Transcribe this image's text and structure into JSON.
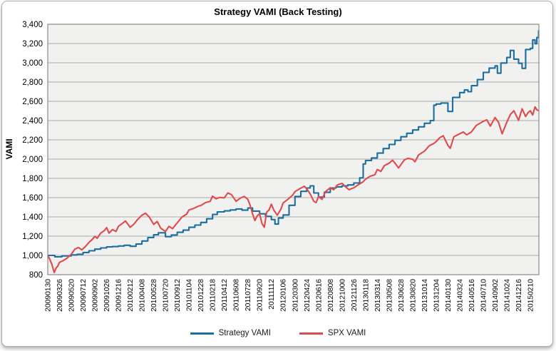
{
  "chart": {
    "title": "Strategy VAMI (Back Testing)",
    "y_axis_title": "VAMI"
  },
  "chart_data": {
    "type": "line",
    "title": "Strategy VAMI (Back Testing)",
    "xlabel": "",
    "ylabel": "VAMI",
    "ylim": [
      800,
      3400
    ],
    "ytick_step": 200,
    "grid": "horizontal",
    "legend_position": "bottom",
    "plot_bg": "#f1f1ef",
    "grid_color": "#ababab",
    "axis_color": "#8a8a8a",
    "y_tick_labels": [
      "800",
      "1,000",
      "1,200",
      "1,400",
      "1,600",
      "1,800",
      "2,000",
      "2,200",
      "2,400",
      "2,600",
      "2,800",
      "3,000",
      "3,200",
      "3,400"
    ],
    "x_labels": [
      "20090130",
      "20090326",
      "20090520",
      "20090712",
      "20090902",
      "20091026",
      "20091216",
      "20100212",
      "20100408",
      "20100528",
      "20100720",
      "20100912",
      "20101104",
      "20101228",
      "20110218",
      "20110412",
      "20110608",
      "20110728",
      "20110920",
      "20111112",
      "20120106",
      "20120300",
      "20120424",
      "20120616",
      "20120808",
      "20121000",
      "20121126",
      "20130118",
      "20130314",
      "20130508",
      "20130628",
      "20130820",
      "20131014",
      "20131204",
      "20140130",
      "20140324",
      "20140516",
      "20140710",
      "20140902",
      "20141024",
      "20141216",
      "20150210"
    ],
    "series": [
      {
        "name": "Strategy VAMI",
        "color": "#1b6e9d",
        "interpolation": "step",
        "points": [
          [
            0,
            1000
          ],
          [
            0.6,
            985
          ],
          [
            1.2,
            995
          ],
          [
            2,
            1005
          ],
          [
            2.5,
            1012
          ],
          [
            3,
            1030
          ],
          [
            3.5,
            1048
          ],
          [
            4,
            1065
          ],
          [
            4.5,
            1078
          ],
          [
            5,
            1088
          ],
          [
            5.5,
            1092
          ],
          [
            6,
            1098
          ],
          [
            6.5,
            1105
          ],
          [
            7,
            1095
          ],
          [
            7.5,
            1118
          ],
          [
            8,
            1150
          ],
          [
            8.5,
            1185
          ],
          [
            9,
            1215
          ],
          [
            9.4,
            1235
          ],
          [
            10,
            1195
          ],
          [
            10.5,
            1212
          ],
          [
            11,
            1240
          ],
          [
            11.5,
            1262
          ],
          [
            12,
            1292
          ],
          [
            12.5,
            1315
          ],
          [
            13,
            1342
          ],
          [
            13.5,
            1380
          ],
          [
            14,
            1425
          ],
          [
            14.4,
            1452
          ],
          [
            15,
            1462
          ],
          [
            15.5,
            1472
          ],
          [
            16,
            1482
          ],
          [
            16.5,
            1470
          ],
          [
            17,
            1492
          ],
          [
            17.4,
            1460
          ],
          [
            18,
            1432
          ],
          [
            18.5,
            1405
          ],
          [
            19,
            1372
          ],
          [
            19.3,
            1325
          ],
          [
            19.6,
            1388
          ],
          [
            20,
            1420
          ],
          [
            20.5,
            1520
          ],
          [
            21,
            1612
          ],
          [
            21.5,
            1665
          ],
          [
            22,
            1700
          ],
          [
            22.3,
            1722
          ],
          [
            22.6,
            1648
          ],
          [
            23,
            1605
          ],
          [
            23.5,
            1655
          ],
          [
            24,
            1700
          ],
          [
            24.5,
            1712
          ],
          [
            25,
            1722
          ],
          [
            25.5,
            1732
          ],
          [
            26,
            1752
          ],
          [
            26.5,
            1805
          ],
          [
            26.8,
            1950
          ],
          [
            27,
            1985
          ],
          [
            27.5,
            2012
          ],
          [
            28,
            2062
          ],
          [
            28.5,
            2110
          ],
          [
            29,
            2152
          ],
          [
            29.5,
            2195
          ],
          [
            30,
            2232
          ],
          [
            30.5,
            2268
          ],
          [
            31,
            2302
          ],
          [
            31.5,
            2335
          ],
          [
            32,
            2372
          ],
          [
            32.5,
            2400
          ],
          [
            32.8,
            2560
          ],
          [
            33,
            2572
          ],
          [
            33.4,
            2582
          ],
          [
            34,
            2495
          ],
          [
            34.4,
            2640
          ],
          [
            35,
            2690
          ],
          [
            35.4,
            2718
          ],
          [
            35.7,
            2700
          ],
          [
            36,
            2762
          ],
          [
            36.5,
            2825
          ],
          [
            37,
            2900
          ],
          [
            37.5,
            2945
          ],
          [
            38,
            2968
          ],
          [
            38.2,
            2892
          ],
          [
            38.5,
            2998
          ],
          [
            39,
            3055
          ],
          [
            39.3,
            3128
          ],
          [
            39.6,
            3038
          ],
          [
            40,
            2995
          ],
          [
            40.3,
            2942
          ],
          [
            40.6,
            3138
          ],
          [
            41,
            3150
          ],
          [
            41.2,
            3238
          ],
          [
            41.4,
            3198
          ],
          [
            41.55,
            3262
          ],
          [
            41.7,
            3338
          ]
        ]
      },
      {
        "name": "SPX VAMI",
        "color": "#e04a4a",
        "interpolation": "linear",
        "points": [
          [
            0,
            1000
          ],
          [
            0.2,
            952
          ],
          [
            0.35,
            905
          ],
          [
            0.55,
            822
          ],
          [
            0.7,
            868
          ],
          [
            0.85,
            888
          ],
          [
            1,
            928
          ],
          [
            1.3,
            945
          ],
          [
            1.6,
            968
          ],
          [
            2,
            1012
          ],
          [
            2.3,
            1065
          ],
          [
            2.6,
            1082
          ],
          [
            2.9,
            1058
          ],
          [
            3.2,
            1092
          ],
          [
            3.5,
            1135
          ],
          [
            3.8,
            1168
          ],
          [
            4,
            1198
          ],
          [
            4.2,
            1178
          ],
          [
            4.5,
            1232
          ],
          [
            4.8,
            1258
          ],
          [
            5,
            1288
          ],
          [
            5.2,
            1232
          ],
          [
            5.5,
            1268
          ],
          [
            5.8,
            1248
          ],
          [
            6,
            1302
          ],
          [
            6.3,
            1328
          ],
          [
            6.6,
            1358
          ],
          [
            7,
            1292
          ],
          [
            7.3,
            1322
          ],
          [
            7.6,
            1368
          ],
          [
            8,
            1418
          ],
          [
            8.3,
            1438
          ],
          [
            8.6,
            1402
          ],
          [
            9,
            1322
          ],
          [
            9.3,
            1352
          ],
          [
            9.6,
            1282
          ],
          [
            10,
            1248
          ],
          [
            10.3,
            1302
          ],
          [
            10.6,
            1278
          ],
          [
            11,
            1338
          ],
          [
            11.4,
            1398
          ],
          [
            11.8,
            1428
          ],
          [
            12,
            1472
          ],
          [
            12.4,
            1488
          ],
          [
            12.8,
            1512
          ],
          [
            13,
            1518
          ],
          [
            13.4,
            1548
          ],
          [
            13.8,
            1562
          ],
          [
            14,
            1615
          ],
          [
            14.3,
            1588
          ],
          [
            14.6,
            1602
          ],
          [
            15,
            1598
          ],
          [
            15.3,
            1648
          ],
          [
            15.6,
            1632
          ],
          [
            16,
            1562
          ],
          [
            16.4,
            1598
          ],
          [
            16.7,
            1612
          ],
          [
            17,
            1582
          ],
          [
            17.2,
            1518
          ],
          [
            17.4,
            1432
          ],
          [
            17.6,
            1362
          ],
          [
            17.8,
            1412
          ],
          [
            18,
            1432
          ],
          [
            18.2,
            1332
          ],
          [
            18.4,
            1292
          ],
          [
            18.6,
            1448
          ],
          [
            18.8,
            1472
          ],
          [
            19,
            1532
          ],
          [
            19.2,
            1472
          ],
          [
            19.5,
            1418
          ],
          [
            19.8,
            1478
          ],
          [
            20,
            1545
          ],
          [
            20.4,
            1582
          ],
          [
            20.8,
            1625
          ],
          [
            21,
            1662
          ],
          [
            21.4,
            1692
          ],
          [
            21.8,
            1718
          ],
          [
            22,
            1692
          ],
          [
            22.3,
            1638
          ],
          [
            22.6,
            1562
          ],
          [
            22.8,
            1548
          ],
          [
            23,
            1612
          ],
          [
            23.3,
            1582
          ],
          [
            23.6,
            1662
          ],
          [
            24,
            1702
          ],
          [
            24.3,
            1682
          ],
          [
            24.6,
            1732
          ],
          [
            25,
            1748
          ],
          [
            25.3,
            1712
          ],
          [
            25.6,
            1682
          ],
          [
            26,
            1702
          ],
          [
            26.4,
            1735
          ],
          [
            26.8,
            1765
          ],
          [
            27,
            1792
          ],
          [
            27.4,
            1822
          ],
          [
            27.8,
            1838
          ],
          [
            28,
            1892
          ],
          [
            28.3,
            1872
          ],
          [
            28.6,
            1932
          ],
          [
            29,
            1958
          ],
          [
            29.3,
            1988
          ],
          [
            29.6,
            1942
          ],
          [
            29.8,
            1908
          ],
          [
            30,
            1942
          ],
          [
            30.3,
            1992
          ],
          [
            30.6,
            2008
          ],
          [
            31,
            1998
          ],
          [
            31.2,
            1972
          ],
          [
            31.5,
            2042
          ],
          [
            32,
            2082
          ],
          [
            32.4,
            2138
          ],
          [
            32.8,
            2162
          ],
          [
            33,
            2182
          ],
          [
            33.3,
            2222
          ],
          [
            33.6,
            2242
          ],
          [
            34,
            2142
          ],
          [
            34.2,
            2112
          ],
          [
            34.5,
            2232
          ],
          [
            35,
            2262
          ],
          [
            35.3,
            2282
          ],
          [
            35.6,
            2252
          ],
          [
            36,
            2282
          ],
          [
            36.4,
            2348
          ],
          [
            36.8,
            2378
          ],
          [
            37,
            2392
          ],
          [
            37.3,
            2408
          ],
          [
            37.6,
            2342
          ],
          [
            38,
            2432
          ],
          [
            38.3,
            2382
          ],
          [
            38.6,
            2262
          ],
          [
            39,
            2382
          ],
          [
            39.3,
            2462
          ],
          [
            39.6,
            2502
          ],
          [
            40,
            2402
          ],
          [
            40.3,
            2522
          ],
          [
            40.6,
            2442
          ],
          [
            40.8,
            2482
          ],
          [
            41,
            2502
          ],
          [
            41.2,
            2458
          ],
          [
            41.4,
            2542
          ],
          [
            41.55,
            2512
          ],
          [
            41.7,
            2502
          ]
        ]
      }
    ]
  }
}
